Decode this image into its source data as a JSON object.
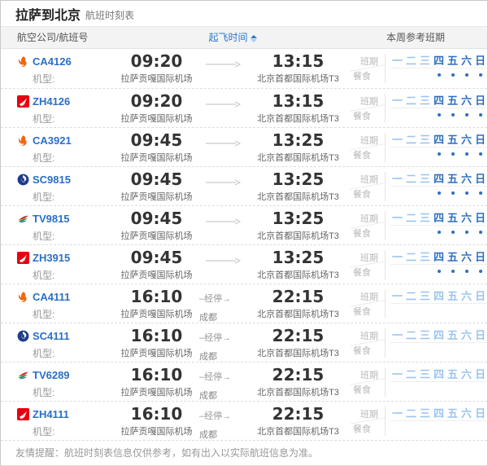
{
  "title": {
    "main": "拉萨到北京",
    "sub": "航班时刻表"
  },
  "columns": {
    "airline": "航空公司/航班号",
    "departure_sort": "起飞时间",
    "week": "本周参考班期"
  },
  "labels": {
    "aircraft_type": "机型:",
    "schedule": "班期",
    "meal": "餐食",
    "stopover_text": "–经停→"
  },
  "week_days": [
    "一",
    "二",
    "三",
    "四",
    "五",
    "六",
    "日"
  ],
  "colors": {
    "link_blue": "#2a6fc9",
    "sort_blue": "#2a77d0",
    "day_light_blue": "#9cc4ee",
    "day_dark_blue": "#2e6fc0",
    "time_text": "#333333"
  },
  "flights": [
    {
      "flight_no": "CA4126",
      "airline": "air-china",
      "dep_time": "09:20",
      "arr_time": "13:15",
      "dep_airport": "拉萨贡嘎国际机场",
      "arr_airport": "北京首都国际机场T3",
      "stopover_city": null,
      "active_days": [
        0,
        0,
        0,
        1,
        1,
        1,
        1
      ],
      "meal_days": [
        0,
        0,
        0,
        1,
        1,
        1,
        1
      ]
    },
    {
      "flight_no": "ZH4126",
      "airline": "shenzhen-airlines",
      "dep_time": "09:20",
      "arr_time": "13:15",
      "dep_airport": "拉萨贡嘎国际机场",
      "arr_airport": "北京首都国际机场T3",
      "stopover_city": null,
      "active_days": [
        0,
        0,
        0,
        1,
        1,
        1,
        1
      ],
      "meal_days": [
        0,
        0,
        0,
        1,
        1,
        1,
        1
      ]
    },
    {
      "flight_no": "CA3921",
      "airline": "air-china",
      "dep_time": "09:45",
      "arr_time": "13:25",
      "dep_airport": "拉萨贡嘎国际机场",
      "arr_airport": "北京首都国际机场T3",
      "stopover_city": null,
      "active_days": [
        0,
        0,
        0,
        1,
        1,
        1,
        1
      ],
      "meal_days": [
        0,
        0,
        0,
        1,
        1,
        1,
        1
      ]
    },
    {
      "flight_no": "SC9815",
      "airline": "shandong-airlines",
      "dep_time": "09:45",
      "arr_time": "13:25",
      "dep_airport": "拉萨贡嘎国际机场",
      "arr_airport": "北京首都国际机场T3",
      "stopover_city": null,
      "active_days": [
        0,
        0,
        0,
        1,
        1,
        1,
        1
      ],
      "meal_days": [
        0,
        0,
        0,
        1,
        1,
        1,
        1
      ]
    },
    {
      "flight_no": "TV9815",
      "airline": "tibet-airlines",
      "dep_time": "09:45",
      "arr_time": "13:25",
      "dep_airport": "拉萨贡嘎国际机场",
      "arr_airport": "北京首都国际机场T3",
      "stopover_city": null,
      "active_days": [
        0,
        0,
        0,
        1,
        1,
        1,
        1
      ],
      "meal_days": [
        0,
        0,
        0,
        1,
        1,
        1,
        1
      ]
    },
    {
      "flight_no": "ZH3915",
      "airline": "shenzhen-airlines",
      "dep_time": "09:45",
      "arr_time": "13:25",
      "dep_airport": "拉萨贡嘎国际机场",
      "arr_airport": "北京首都国际机场T3",
      "stopover_city": null,
      "active_days": [
        0,
        0,
        0,
        1,
        1,
        1,
        1
      ],
      "meal_days": [
        0,
        0,
        0,
        1,
        1,
        1,
        1
      ]
    },
    {
      "flight_no": "CA4111",
      "airline": "air-china",
      "dep_time": "16:10",
      "arr_time": "22:15",
      "dep_airport": "拉萨贡嘎国际机场",
      "arr_airport": "北京首都国际机场T3",
      "stopover_city": "成都",
      "active_days": [
        0,
        0,
        0,
        0,
        0,
        0,
        0
      ],
      "meal_days": [
        0,
        0,
        0,
        0,
        0,
        0,
        0
      ]
    },
    {
      "flight_no": "SC4111",
      "airline": "shandong-airlines",
      "dep_time": "16:10",
      "arr_time": "22:15",
      "dep_airport": "拉萨贡嘎国际机场",
      "arr_airport": "北京首都国际机场T3",
      "stopover_city": "成都",
      "active_days": [
        0,
        0,
        0,
        0,
        0,
        0,
        0
      ],
      "meal_days": [
        0,
        0,
        0,
        0,
        0,
        0,
        0
      ]
    },
    {
      "flight_no": "TV6289",
      "airline": "tibet-airlines",
      "dep_time": "16:10",
      "arr_time": "22:15",
      "dep_airport": "拉萨贡嘎国际机场",
      "arr_airport": "北京首都国际机场T3",
      "stopover_city": "成都",
      "active_days": [
        0,
        0,
        0,
        0,
        0,
        0,
        0
      ],
      "meal_days": [
        0,
        0,
        0,
        0,
        0,
        0,
        0
      ]
    },
    {
      "flight_no": "ZH4111",
      "airline": "shenzhen-airlines",
      "dep_time": "16:10",
      "arr_time": "22:15",
      "dep_airport": "拉萨贡嘎国际机场",
      "arr_airport": "北京首都国际机场T3",
      "stopover_city": "成都",
      "active_days": [
        0,
        0,
        0,
        0,
        0,
        0,
        0
      ],
      "meal_days": [
        0,
        0,
        0,
        0,
        0,
        0,
        0
      ]
    }
  ],
  "footer": {
    "notice": "友情提醒：航班时刻表信息仅供参考，如有出入以实际航班信息为准。"
  }
}
